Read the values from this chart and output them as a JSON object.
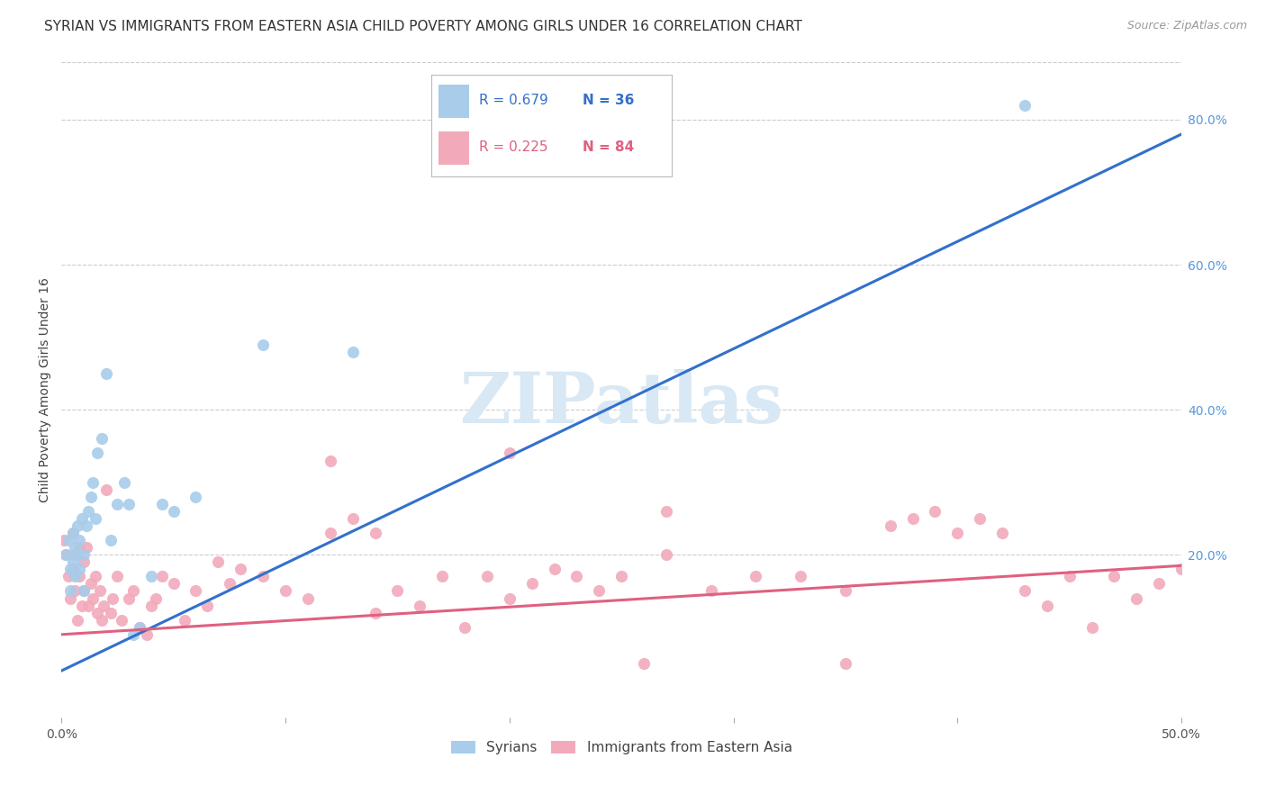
{
  "title": "SYRIAN VS IMMIGRANTS FROM EASTERN ASIA CHILD POVERTY AMONG GIRLS UNDER 16 CORRELATION CHART",
  "source": "Source: ZipAtlas.com",
  "ylabel": "Child Poverty Among Girls Under 16",
  "xlim": [
    0.0,
    0.5
  ],
  "ylim": [
    -0.025,
    0.88
  ],
  "xticks": [
    0.0,
    0.1,
    0.2,
    0.3,
    0.4,
    0.5
  ],
  "xticklabels": [
    "0.0%",
    "",
    "",
    "",
    "",
    "50.0%"
  ],
  "yticks_right": [
    0.2,
    0.4,
    0.6,
    0.8
  ],
  "yticklabels_right": [
    "20.0%",
    "40.0%",
    "60.0%",
    "80.0%"
  ],
  "hlines": [
    0.2,
    0.4,
    0.6,
    0.8
  ],
  "legend_r1": "R = 0.679",
  "legend_n1": "N = 36",
  "legend_r2": "R = 0.225",
  "legend_n2": "N = 84",
  "legend_label1": "Syrians",
  "legend_label2": "Immigrants from Eastern Asia",
  "blue_color": "#A8CCEA",
  "pink_color": "#F2AABB",
  "blue_line_color": "#3370CC",
  "pink_line_color": "#E06080",
  "watermark": "ZIPatlas",
  "watermark_color": "#D8E8F4",
  "blue_scatter_x": [
    0.002,
    0.003,
    0.004,
    0.004,
    0.005,
    0.005,
    0.006,
    0.006,
    0.007,
    0.007,
    0.008,
    0.008,
    0.009,
    0.01,
    0.01,
    0.011,
    0.012,
    0.013,
    0.014,
    0.015,
    0.016,
    0.018,
    0.02,
    0.022,
    0.025,
    0.028,
    0.03,
    0.032,
    0.035,
    0.04,
    0.045,
    0.05,
    0.06,
    0.09,
    0.13,
    0.43
  ],
  "blue_scatter_y": [
    0.2,
    0.22,
    0.18,
    0.15,
    0.23,
    0.19,
    0.21,
    0.17,
    0.24,
    0.2,
    0.22,
    0.18,
    0.25,
    0.2,
    0.15,
    0.24,
    0.26,
    0.28,
    0.3,
    0.25,
    0.34,
    0.36,
    0.45,
    0.22,
    0.27,
    0.3,
    0.27,
    0.09,
    0.1,
    0.17,
    0.27,
    0.26,
    0.28,
    0.49,
    0.48,
    0.82
  ],
  "pink_scatter_x": [
    0.001,
    0.002,
    0.003,
    0.004,
    0.005,
    0.005,
    0.006,
    0.006,
    0.007,
    0.008,
    0.008,
    0.009,
    0.01,
    0.01,
    0.011,
    0.012,
    0.013,
    0.014,
    0.015,
    0.016,
    0.017,
    0.018,
    0.019,
    0.02,
    0.022,
    0.023,
    0.025,
    0.027,
    0.03,
    0.032,
    0.035,
    0.038,
    0.04,
    0.042,
    0.045,
    0.05,
    0.055,
    0.06,
    0.065,
    0.07,
    0.075,
    0.08,
    0.09,
    0.1,
    0.11,
    0.12,
    0.13,
    0.14,
    0.15,
    0.16,
    0.17,
    0.18,
    0.19,
    0.2,
    0.21,
    0.22,
    0.23,
    0.25,
    0.27,
    0.29,
    0.31,
    0.33,
    0.35,
    0.37,
    0.39,
    0.4,
    0.41,
    0.42,
    0.43,
    0.44,
    0.45,
    0.46,
    0.47,
    0.48,
    0.49,
    0.5,
    0.12,
    0.2,
    0.27,
    0.38,
    0.35,
    0.14,
    0.24,
    0.26
  ],
  "pink_scatter_y": [
    0.22,
    0.2,
    0.17,
    0.14,
    0.23,
    0.18,
    0.15,
    0.2,
    0.11,
    0.17,
    0.21,
    0.13,
    0.19,
    0.15,
    0.21,
    0.13,
    0.16,
    0.14,
    0.17,
    0.12,
    0.15,
    0.11,
    0.13,
    0.29,
    0.12,
    0.14,
    0.17,
    0.11,
    0.14,
    0.15,
    0.1,
    0.09,
    0.13,
    0.14,
    0.17,
    0.16,
    0.11,
    0.15,
    0.13,
    0.19,
    0.16,
    0.18,
    0.17,
    0.15,
    0.14,
    0.23,
    0.25,
    0.23,
    0.15,
    0.13,
    0.17,
    0.1,
    0.17,
    0.14,
    0.16,
    0.18,
    0.17,
    0.17,
    0.26,
    0.15,
    0.17,
    0.17,
    0.15,
    0.24,
    0.26,
    0.23,
    0.25,
    0.23,
    0.15,
    0.13,
    0.17,
    0.1,
    0.17,
    0.14,
    0.16,
    0.18,
    0.33,
    0.34,
    0.2,
    0.25,
    0.05,
    0.12,
    0.15,
    0.05
  ],
  "blue_line_x": [
    0.0,
    0.5
  ],
  "blue_line_y": [
    0.04,
    0.78
  ],
  "pink_line_x": [
    0.0,
    0.5
  ],
  "pink_line_y": [
    0.09,
    0.185
  ],
  "title_fontsize": 11,
  "axis_label_fontsize": 10,
  "tick_fontsize": 10,
  "scatter_size": 90,
  "background_color": "#FFFFFF",
  "grid_color": "#CCCCCC"
}
